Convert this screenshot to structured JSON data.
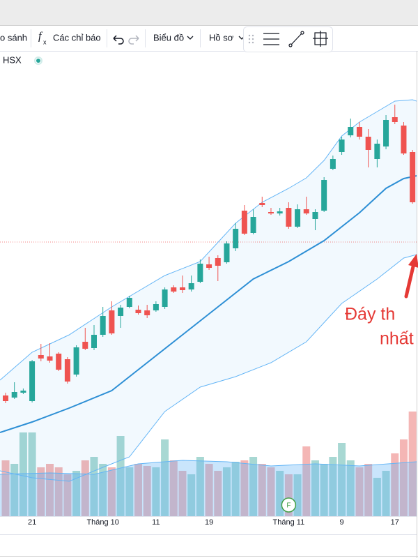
{
  "toolbar": {
    "compare": "o sánh",
    "indicator_icon_f": "f",
    "indicator_icon_x": "x",
    "indicators": "Các chỉ báo",
    "chart_menu": "Biểu đồ",
    "profile_menu": "Hồ sơ"
  },
  "symbol": {
    "exchange": "HSX"
  },
  "chart_data": {
    "type": "candlestick",
    "x": [
      0,
      1,
      2,
      3,
      4,
      5,
      6,
      7,
      8,
      9,
      10,
      11,
      12,
      13,
      14,
      15,
      16,
      17,
      18,
      19,
      20,
      21,
      22,
      23,
      24,
      25,
      26,
      27,
      28,
      29,
      30,
      31,
      32,
      33,
      34,
      35,
      36,
      37,
      38,
      39,
      40,
      41,
      42,
      43,
      44,
      45,
      46
    ],
    "open": [
      173,
      170,
      177,
      165,
      231,
      229,
      233,
      225,
      203,
      250,
      241,
      260,
      295,
      287,
      300,
      296,
      295,
      295,
      300,
      328,
      328,
      325,
      336,
      361,
      370,
      364,
      384,
      438,
      406,
      449,
      436,
      434,
      442,
      415,
      440,
      426,
      438,
      498,
      522,
      546,
      558,
      544,
      512,
      530,
      572,
      560,
      522
    ],
    "high": [
      177,
      192,
      183,
      224,
      247,
      248,
      235,
      228,
      245,
      270,
      274,
      300,
      308,
      303,
      316,
      302,
      303,
      308,
      328,
      331,
      345,
      345,
      368,
      372,
      374,
      394,
      420,
      446,
      440,
      458,
      442,
      442,
      450,
      447,
      458,
      440,
      486,
      517,
      544,
      570,
      565,
      555,
      540,
      575,
      590,
      565,
      525
    ],
    "low": [
      162,
      168,
      175,
      163,
      222,
      220,
      208,
      190,
      200,
      238,
      238,
      257,
      260,
      270,
      298,
      289,
      284,
      293,
      297,
      320,
      320,
      322,
      334,
      353,
      337,
      362,
      380,
      403,
      404,
      443,
      432,
      431,
      412,
      413,
      432,
      410,
      436,
      496,
      518,
      543,
      540,
      500,
      500,
      526,
      562,
      518,
      448
    ],
    "close": [
      165,
      178,
      180,
      222,
      226,
      223,
      210,
      193,
      242,
      240,
      260,
      287,
      262,
      299,
      313,
      291,
      288,
      304,
      325,
      322,
      324,
      334,
      362,
      356,
      359,
      391,
      412,
      405,
      429,
      446,
      434,
      437,
      415,
      440,
      434,
      436,
      482,
      512,
      540,
      558,
      544,
      525,
      534,
      568,
      565,
      520,
      450
    ],
    "up_color": "#26a69a",
    "down_color": "#ef5350",
    "xlim": [
      -0.63,
      46.46
    ],
    "ylim": [
      0,
      640
    ],
    "xticks": [
      {
        "value": 3,
        "label": "21"
      },
      {
        "value": 11,
        "label": "Tháng 10"
      },
      {
        "value": 17,
        "label": "11"
      },
      {
        "value": 23,
        "label": "19"
      },
      {
        "value": 32,
        "label": "Tháng 11"
      },
      {
        "value": 38,
        "label": "9"
      },
      {
        "value": 44,
        "label": "17"
      }
    ],
    "bands": {
      "upper": {
        "x": [
          -0.63,
          3,
          7.2,
          12,
          18,
          22,
          26,
          29,
          32,
          34,
          36,
          38,
          40,
          42,
          44,
          46,
          46.46
        ],
        "values": [
          195,
          235,
          260,
          300,
          345,
          365,
          420,
          450,
          470,
          485,
          510,
          545,
          565,
          580,
          595,
          597,
          595
        ],
        "color": "#64b5f6"
      },
      "middle": {
        "x": [
          -0.63,
          3,
          7.2,
          12,
          16,
          20,
          24,
          28,
          32,
          36,
          40,
          43,
          45,
          46.46
        ],
        "values": [
          120,
          135,
          155,
          180,
          220,
          260,
          300,
          340,
          365,
          395,
          435,
          470,
          484,
          488
        ],
        "color": "#2d8fd5"
      },
      "lower": {
        "x": [
          -0.63,
          3,
          7.2,
          11,
          14,
          18,
          22,
          26,
          30,
          34,
          38,
          42,
          45,
          46.46
        ],
        "values": [
          65,
          55,
          50,
          70,
          85,
          150,
          185,
          200,
          220,
          250,
          305,
          340,
          370,
          375
        ],
        "color": "#64b5f6"
      }
    },
    "reference_line": {
      "value": 393,
      "color": "#ef5350"
    },
    "volume": {
      "values": [
        80,
        75,
        120,
        120,
        70,
        75,
        70,
        60,
        65,
        80,
        85,
        75,
        70,
        115,
        70,
        75,
        72,
        70,
        110,
        80,
        65,
        60,
        85,
        75,
        65,
        70,
        78,
        80,
        85,
        75,
        70,
        65,
        60,
        60,
        100,
        80,
        75,
        85,
        105,
        80,
        70,
        75,
        55,
        65,
        90,
        110,
        150
      ],
      "ylim": [
        0,
        640
      ],
      "up_color": "#a8d8d3",
      "down_color": "#f4b6b5",
      "ma": {
        "x": [
          -0.63,
          5,
          10,
          15,
          20,
          25,
          30,
          35,
          40,
          46.46
        ],
        "values": [
          60,
          62,
          60,
          75,
          80,
          78,
          72,
          75,
          72,
          78
        ],
        "color": "#64b5f6"
      }
    },
    "events": [
      {
        "x": 32,
        "label": "F",
        "color": "#43a047"
      }
    ],
    "annotations": [
      {
        "text": "Đáy th"
      },
      {
        "text": "nhất"
      }
    ]
  }
}
